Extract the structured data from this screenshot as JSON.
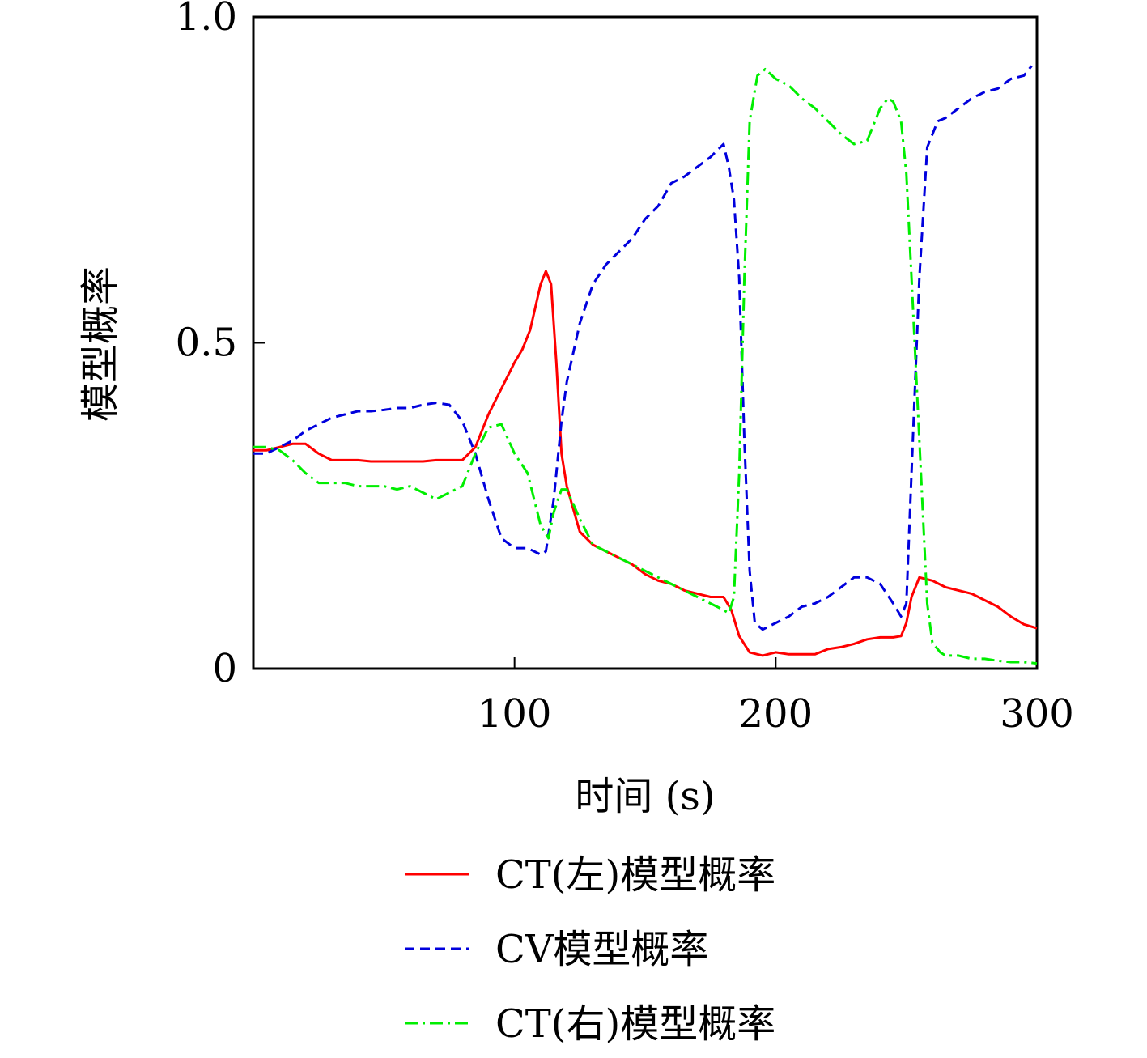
{
  "chart_data": {
    "type": "line",
    "title": "",
    "xlabel": "时间 (s)",
    "ylabel": "模型概率",
    "xlim": [
      0,
      300
    ],
    "ylim": [
      0,
      1
    ],
    "x_ticks": [
      100,
      200,
      300
    ],
    "x_tick_labels": [
      "100",
      "200",
      "300"
    ],
    "y_ticks": [
      0,
      0.5,
      1.0
    ],
    "y_tick_labels": [
      "0",
      "0.5",
      "1.0"
    ],
    "grid": false,
    "legend_position": "below plot",
    "series": [
      {
        "name": "CT(左)模型概率",
        "color": "#ff0000",
        "dash": "solid",
        "x": [
          0,
          5,
          10,
          15,
          20,
          25,
          30,
          35,
          40,
          45,
          50,
          55,
          60,
          65,
          70,
          75,
          80,
          85,
          90,
          95,
          100,
          103,
          106,
          110,
          112,
          114,
          116,
          118,
          120,
          125,
          130,
          135,
          140,
          145,
          150,
          155,
          160,
          165,
          170,
          175,
          180,
          183,
          186,
          190,
          195,
          200,
          205,
          210,
          215,
          220,
          225,
          230,
          235,
          240,
          245,
          248,
          250,
          252,
          255,
          260,
          265,
          270,
          275,
          280,
          285,
          290,
          295,
          300
        ],
        "y": [
          0.335,
          0.335,
          0.34,
          0.345,
          0.345,
          0.33,
          0.32,
          0.32,
          0.32,
          0.318,
          0.318,
          0.318,
          0.318,
          0.318,
          0.32,
          0.32,
          0.32,
          0.34,
          0.39,
          0.43,
          0.47,
          0.49,
          0.52,
          0.59,
          0.61,
          0.59,
          0.47,
          0.33,
          0.28,
          0.21,
          0.19,
          0.18,
          0.17,
          0.16,
          0.145,
          0.135,
          0.13,
          0.12,
          0.115,
          0.11,
          0.11,
          0.09,
          0.05,
          0.025,
          0.02,
          0.025,
          0.022,
          0.022,
          0.022,
          0.03,
          0.033,
          0.038,
          0.045,
          0.048,
          0.048,
          0.05,
          0.07,
          0.11,
          0.14,
          0.135,
          0.125,
          0.12,
          0.115,
          0.105,
          0.095,
          0.08,
          0.068,
          0.062
        ]
      },
      {
        "name": "CV模型概率",
        "color": "#0000dd",
        "dash": "dashed",
        "x": [
          0,
          5,
          10,
          15,
          20,
          25,
          30,
          35,
          40,
          45,
          50,
          55,
          60,
          65,
          70,
          75,
          80,
          85,
          90,
          95,
          100,
          105,
          110,
          112,
          115,
          118,
          120,
          125,
          130,
          135,
          140,
          145,
          150,
          155,
          160,
          165,
          170,
          175,
          180,
          182,
          184,
          186,
          188,
          190,
          192,
          195,
          200,
          205,
          210,
          215,
          220,
          225,
          230,
          235,
          240,
          245,
          248,
          250,
          252,
          255,
          258,
          262,
          265,
          270,
          275,
          280,
          285,
          290,
          295,
          298
        ],
        "y": [
          0.33,
          0.33,
          0.34,
          0.35,
          0.365,
          0.375,
          0.385,
          0.39,
          0.395,
          0.395,
          0.397,
          0.4,
          0.4,
          0.405,
          0.408,
          0.405,
          0.38,
          0.33,
          0.26,
          0.2,
          0.185,
          0.185,
          0.175,
          0.18,
          0.26,
          0.38,
          0.44,
          0.53,
          0.59,
          0.62,
          0.64,
          0.66,
          0.69,
          0.71,
          0.745,
          0.755,
          0.77,
          0.785,
          0.805,
          0.77,
          0.72,
          0.6,
          0.35,
          0.15,
          0.07,
          0.06,
          0.07,
          0.08,
          0.095,
          0.1,
          0.11,
          0.125,
          0.14,
          0.14,
          0.13,
          0.1,
          0.08,
          0.1,
          0.3,
          0.6,
          0.8,
          0.84,
          0.845,
          0.86,
          0.875,
          0.885,
          0.89,
          0.905,
          0.91,
          0.925
        ]
      },
      {
        "name": "CT(右)模型概率",
        "color": "#00ee00",
        "dash": "dashdot",
        "x": [
          0,
          5,
          10,
          15,
          20,
          25,
          30,
          35,
          40,
          45,
          50,
          55,
          60,
          65,
          70,
          75,
          80,
          85,
          90,
          95,
          100,
          105,
          110,
          113,
          115,
          118,
          120,
          125,
          130,
          135,
          140,
          145,
          150,
          155,
          160,
          165,
          170,
          175,
          180,
          182,
          184,
          186,
          188,
          190,
          193,
          196,
          200,
          205,
          210,
          215,
          220,
          225,
          230,
          235,
          240,
          243,
          245,
          248,
          250,
          252,
          255,
          258,
          260,
          263,
          265,
          270,
          275,
          280,
          285,
          290,
          295,
          300
        ],
        "y": [
          0.34,
          0.34,
          0.335,
          0.32,
          0.3,
          0.285,
          0.285,
          0.285,
          0.28,
          0.28,
          0.28,
          0.275,
          0.28,
          0.27,
          0.26,
          0.27,
          0.28,
          0.33,
          0.37,
          0.375,
          0.33,
          0.3,
          0.22,
          0.2,
          0.24,
          0.275,
          0.275,
          0.23,
          0.19,
          0.18,
          0.17,
          0.16,
          0.15,
          0.14,
          0.13,
          0.12,
          0.11,
          0.1,
          0.09,
          0.085,
          0.11,
          0.3,
          0.6,
          0.84,
          0.91,
          0.92,
          0.905,
          0.895,
          0.875,
          0.86,
          0.84,
          0.82,
          0.805,
          0.81,
          0.86,
          0.875,
          0.87,
          0.84,
          0.76,
          0.6,
          0.35,
          0.1,
          0.04,
          0.025,
          0.02,
          0.02,
          0.015,
          0.015,
          0.012,
          0.01,
          0.01,
          0.008
        ]
      }
    ]
  }
}
